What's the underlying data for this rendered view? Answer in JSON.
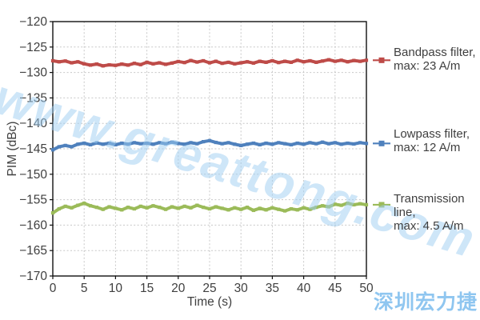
{
  "chart_data": {
    "type": "line",
    "xlabel": "Time (s)",
    "ylabel": "PIM (dBc)",
    "xlim": [
      0,
      50
    ],
    "ylim": [
      -170,
      -120
    ],
    "x_ticks": [
      0,
      5,
      10,
      15,
      20,
      25,
      30,
      35,
      40,
      45,
      50
    ],
    "y_ticks": [
      -120,
      -125,
      -130,
      -135,
      -140,
      -145,
      -150,
      -155,
      -160,
      -165,
      -170
    ],
    "grid": true,
    "legend_position": "right",
    "x": [
      0,
      1,
      2,
      3,
      4,
      5,
      6,
      7,
      8,
      9,
      10,
      11,
      12,
      13,
      14,
      15,
      16,
      17,
      18,
      19,
      20,
      21,
      22,
      23,
      24,
      25,
      26,
      27,
      28,
      29,
      30,
      31,
      32,
      33,
      34,
      35,
      36,
      37,
      38,
      39,
      40,
      41,
      42,
      43,
      44,
      45,
      46,
      47,
      48,
      49,
      50
    ],
    "series": [
      {
        "name": "Bandpass filter, max: 23 A/m",
        "color": "#be4b48",
        "values": [
          -127.7,
          -127.9,
          -127.75,
          -128.1,
          -127.9,
          -128.3,
          -128.55,
          -128.35,
          -128.7,
          -128.5,
          -128.6,
          -128.35,
          -128.55,
          -128.2,
          -128.45,
          -128.0,
          -128.3,
          -128.1,
          -128.4,
          -128.15,
          -127.85,
          -128.05,
          -127.65,
          -127.95,
          -127.7,
          -128.1,
          -127.8,
          -128.2,
          -128.0,
          -128.3,
          -128.1,
          -127.9,
          -128.15,
          -127.8,
          -128.0,
          -127.7,
          -128.05,
          -127.8,
          -128.0,
          -127.6,
          -127.9,
          -127.7,
          -128.0,
          -127.75,
          -127.5,
          -127.8,
          -127.6,
          -127.9,
          -127.65,
          -127.8,
          -127.6
        ]
      },
      {
        "name": "Lowpass filter, max: 12 A/m",
        "color": "#4f81bd",
        "values": [
          -145.2,
          -144.6,
          -144.35,
          -144.6,
          -144.1,
          -143.9,
          -144.2,
          -143.85,
          -144.1,
          -143.9,
          -144.2,
          -143.9,
          -144.1,
          -143.8,
          -144.0,
          -143.9,
          -144.1,
          -143.8,
          -144.0,
          -143.7,
          -143.95,
          -144.1,
          -143.8,
          -144.0,
          -143.6,
          -143.4,
          -143.75,
          -144.0,
          -143.8,
          -144.1,
          -144.35,
          -144.1,
          -143.9,
          -144.2,
          -143.9,
          -144.1,
          -143.8,
          -144.0,
          -144.2,
          -143.9,
          -144.1,
          -143.8,
          -144.0,
          -143.7,
          -144.0,
          -143.8,
          -144.1,
          -143.9,
          -144.05,
          -143.8,
          -143.95
        ]
      },
      {
        "name": "Transmission line, max: 4.5 A/m",
        "color": "#9bbb59",
        "values": [
          -157.6,
          -156.8,
          -156.3,
          -156.6,
          -156.1,
          -155.7,
          -156.2,
          -156.5,
          -156.9,
          -156.4,
          -156.7,
          -157.0,
          -156.5,
          -156.8,
          -156.3,
          -156.6,
          -156.2,
          -156.5,
          -156.9,
          -156.4,
          -156.7,
          -156.3,
          -156.6,
          -156.1,
          -156.5,
          -156.8,
          -156.4,
          -156.7,
          -157.0,
          -156.6,
          -156.9,
          -156.5,
          -157.1,
          -156.7,
          -157.0,
          -156.6,
          -156.9,
          -157.2,
          -156.8,
          -157.0,
          -156.6,
          -156.9,
          -156.5,
          -156.2,
          -156.4,
          -155.9,
          -156.1,
          -155.7,
          -156.0,
          -155.8,
          -156.0
        ]
      }
    ]
  },
  "legend": {
    "items": [
      {
        "line1": "Bandpass filter,",
        "line2": "max: 23 A/m",
        "color": "#be4b48"
      },
      {
        "line1": "Lowpass filter,",
        "line2": "max: 12 A/m",
        "color": "#4f81bd"
      },
      {
        "line1": "Transmission line,",
        "line2": "max: 4.5 A/m",
        "color": "#9bbb59"
      }
    ]
  },
  "axes": {
    "x_label": "Time (s)",
    "y_label": "PIM (dBc)"
  },
  "watermark": {
    "text": "www.greattong.com",
    "color": "rgba(158,205,242,0.5)"
  },
  "brand": {
    "text": "深圳宏力捷",
    "color": "#8fc6f0"
  },
  "style_colors": {
    "axis_text": "#3f3f3f",
    "plot_border": "#111111",
    "gridline": "#c8c8c8",
    "background": "#ffffff"
  }
}
